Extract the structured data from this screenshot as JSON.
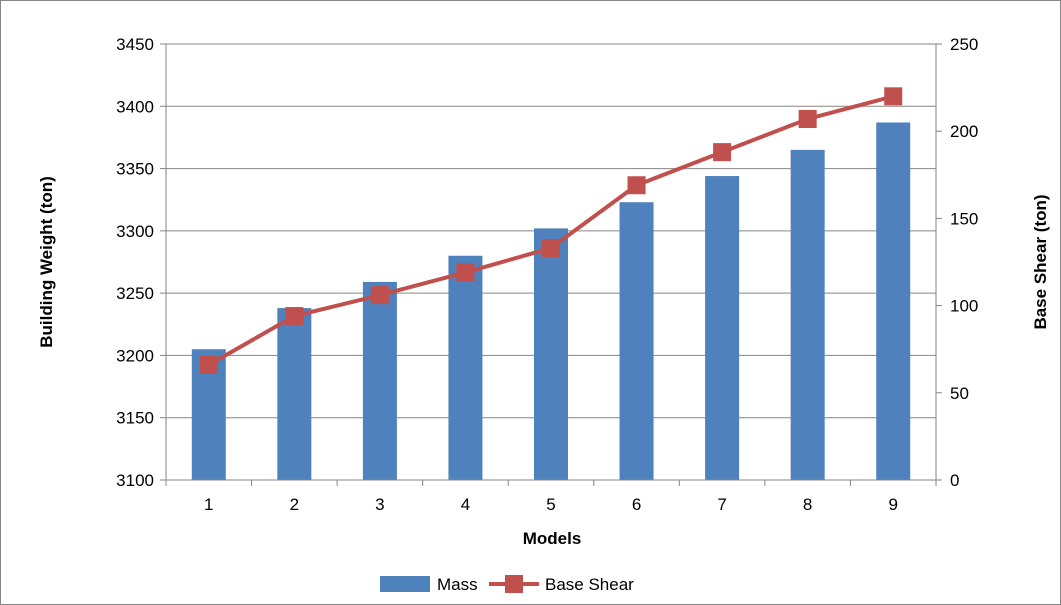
{
  "chart_data": {
    "type": "bar",
    "categories": [
      "1",
      "2",
      "3",
      "4",
      "5",
      "6",
      "7",
      "8",
      "9"
    ],
    "xlabel": "Models",
    "ylabel": "Building Weight (ton)",
    "y2label": "Base Shear (ton)",
    "ylim": [
      3100,
      3450
    ],
    "y2lim": [
      0,
      250
    ],
    "yticks": [
      "3100",
      "3150",
      "3200",
      "3250",
      "3300",
      "3350",
      "3400",
      "3450"
    ],
    "y2ticks": [
      "0",
      "50",
      "100",
      "150",
      "200",
      "250"
    ],
    "grid": true,
    "legend_position": "bottom",
    "series": [
      {
        "name": "Mass",
        "kind": "bar",
        "axis": "left",
        "color": "#4F81BD",
        "values": [
          3205,
          3238,
          3259,
          3280,
          3302,
          3323,
          3344,
          3365,
          3387
        ]
      },
      {
        "name": "Base Shear",
        "kind": "line",
        "axis": "right",
        "marker": "square",
        "color": "#C0504D",
        "values": [
          66,
          94,
          106,
          119,
          133,
          169,
          188,
          207,
          220
        ]
      }
    ]
  }
}
